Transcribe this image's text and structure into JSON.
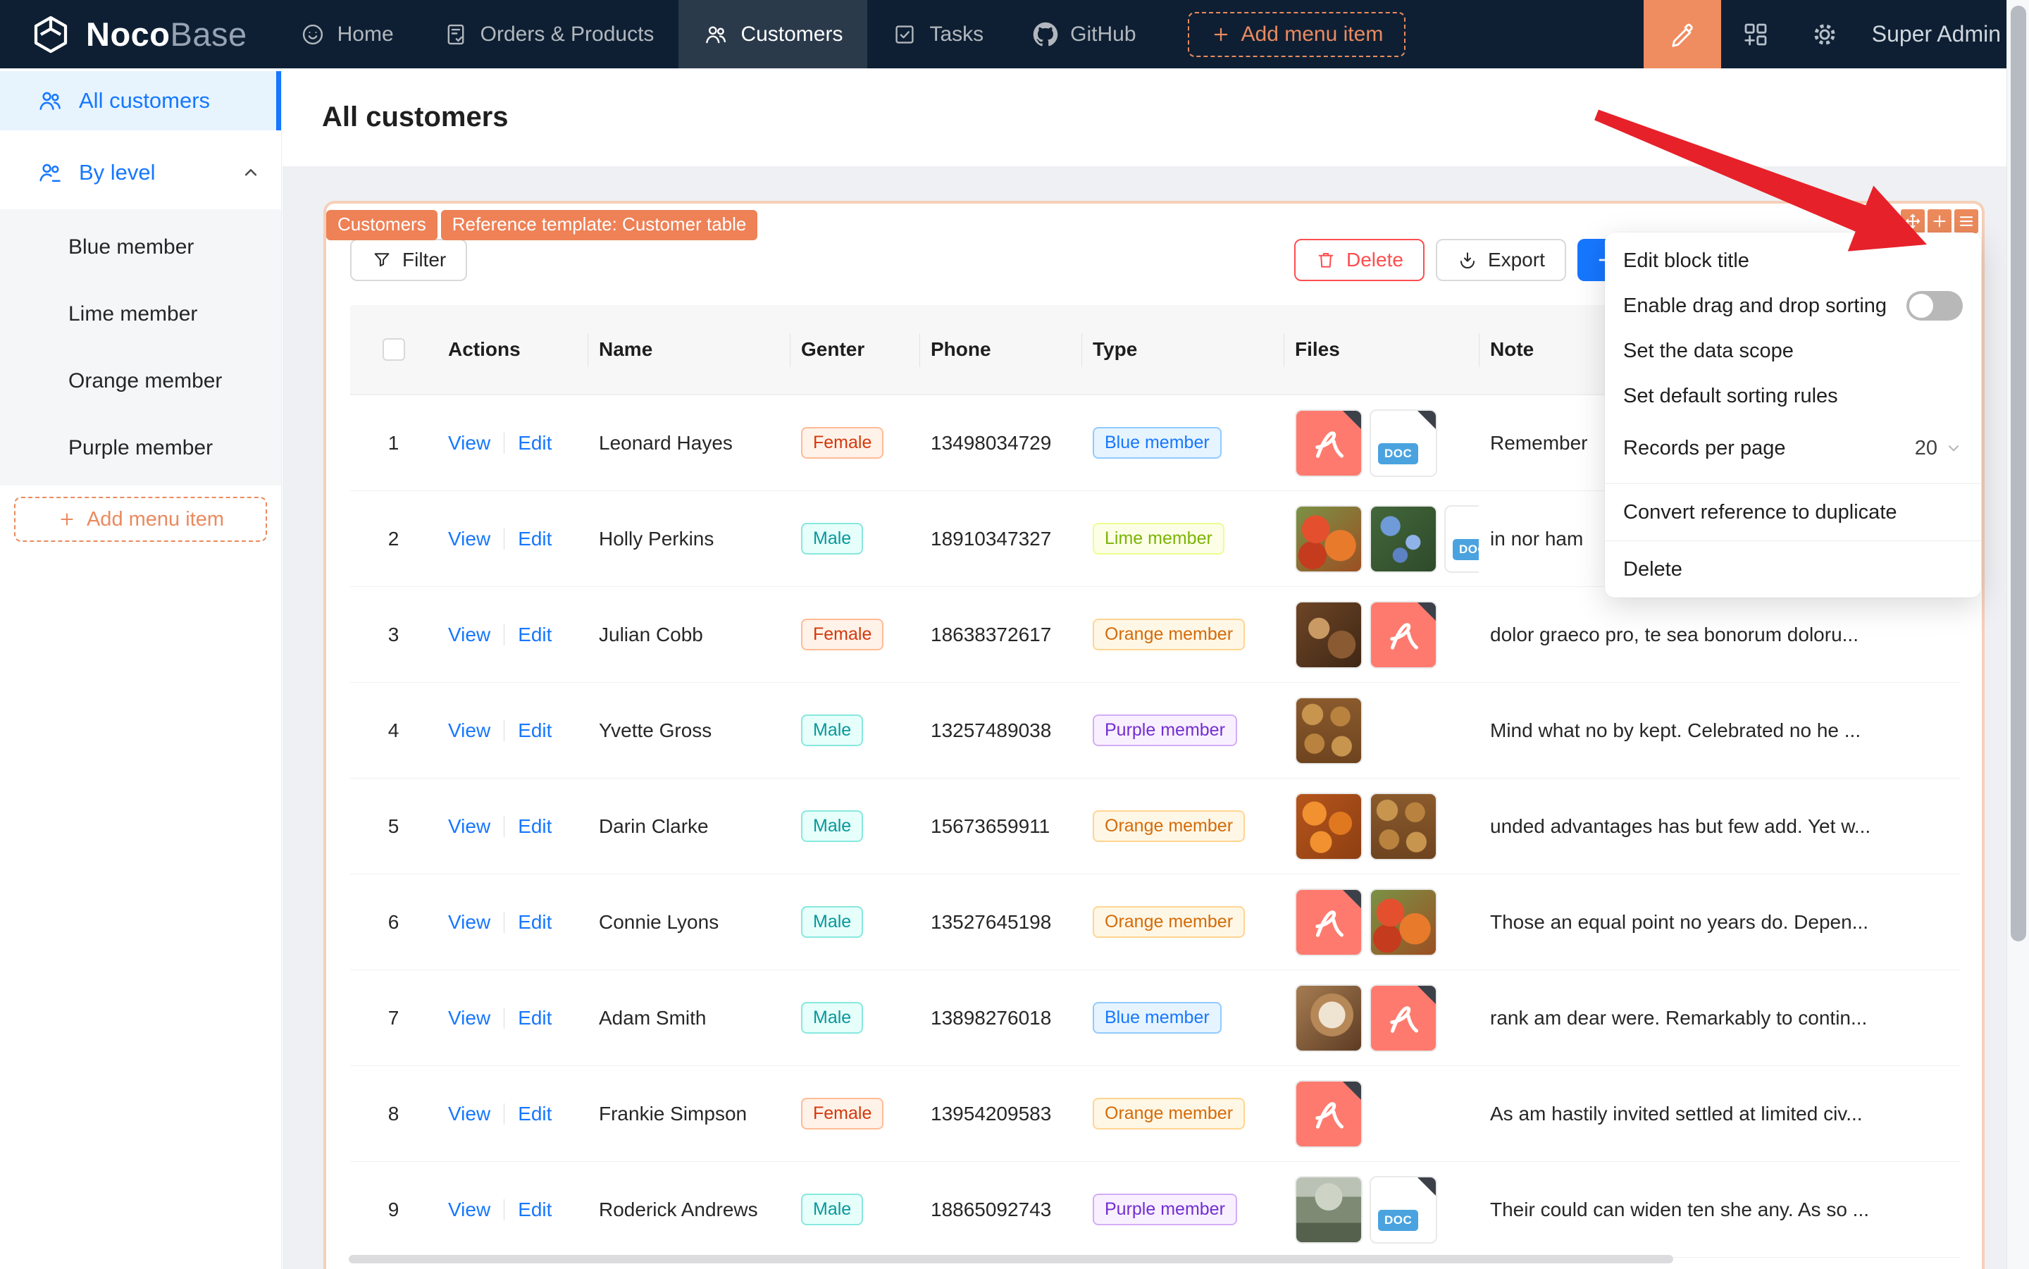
{
  "navbar": {
    "brand": {
      "name_bold": "Noco",
      "name_light": "Base"
    },
    "items": [
      {
        "label": "Home",
        "icon": "home-smiley-icon",
        "active": false
      },
      {
        "label": "Orders & Products",
        "icon": "orders-icon",
        "active": false
      },
      {
        "label": "Customers",
        "icon": "customers-icon",
        "active": true
      },
      {
        "label": "Tasks",
        "icon": "tasks-icon",
        "active": false
      },
      {
        "label": "GitHub",
        "icon": "github-icon",
        "active": false
      }
    ],
    "add_menu_item": "Add menu item",
    "user": "Super Admin"
  },
  "sidebar": {
    "all_customers": "All customers",
    "by_level": "By level",
    "levels": [
      "Blue member",
      "Lime member",
      "Orange member",
      "Purple member"
    ],
    "add_menu_item": "Add menu item"
  },
  "page": {
    "title": "All customers"
  },
  "block": {
    "badges": [
      "Customers",
      "Reference template: Customer table"
    ],
    "filter_label": "Filter",
    "delete_label": "Delete",
    "export_label": "Export"
  },
  "settings_menu": {
    "items": [
      {
        "type": "item",
        "label": "Edit block title"
      },
      {
        "type": "switch",
        "label": "Enable drag and drop sorting",
        "on": false
      },
      {
        "type": "item",
        "label": "Set the data scope"
      },
      {
        "type": "item",
        "label": "Set default sorting rules"
      },
      {
        "type": "select",
        "label": "Records per page",
        "value": "20"
      },
      {
        "type": "divider"
      },
      {
        "type": "item",
        "label": "Convert reference to duplicate"
      },
      {
        "type": "divider"
      },
      {
        "type": "item",
        "label": "Delete"
      }
    ]
  },
  "table": {
    "headers": [
      "Actions",
      "Name",
      "Genter",
      "Phone",
      "Type",
      "Files",
      "Note"
    ],
    "view": "View",
    "edit": "Edit",
    "rows": [
      {
        "index": "1",
        "name": "Leonard Hayes",
        "gender": "Female",
        "gender_color": "volcano",
        "phone": "13498034729",
        "type": "Blue member",
        "type_color": "blue",
        "files": [
          "pdf",
          "doc"
        ],
        "note": "Remember"
      },
      {
        "index": "2",
        "name": "Holly Perkins",
        "gender": "Male",
        "gender_color": "cyan",
        "phone": "18910347327",
        "type": "Lime member",
        "type_color": "lime",
        "files": [
          "img-tomato",
          "img-flowers",
          "doc"
        ],
        "note": "in nor ham"
      },
      {
        "index": "3",
        "name": "Julian Cobb",
        "gender": "Female",
        "gender_color": "volcano",
        "phone": "18638372617",
        "type": "Orange member",
        "type_color": "orange",
        "files": [
          "img-food",
          "pdf"
        ],
        "note": "dolor graeco pro, te sea bonorum doloru..."
      },
      {
        "index": "4",
        "name": "Yvette Gross",
        "gender": "Male",
        "gender_color": "cyan",
        "phone": "13257489038",
        "type": "Purple member",
        "type_color": "purple",
        "files": [
          "img-cookies"
        ],
        "note": "Mind what no by kept. Celebrated no he ..."
      },
      {
        "index": "5",
        "name": "Darin Clarke",
        "gender": "Male",
        "gender_color": "cyan",
        "phone": "15673659911",
        "type": "Orange member",
        "type_color": "orange",
        "files": [
          "img-oranges",
          "img-cookies"
        ],
        "note": "unded advantages has but few add. Yet w..."
      },
      {
        "index": "6",
        "name": "Connie Lyons",
        "gender": "Male",
        "gender_color": "cyan",
        "phone": "13527645198",
        "type": "Orange member",
        "type_color": "orange",
        "files": [
          "pdf",
          "img-tomato"
        ],
        "note": "Those an equal point no years do. Depen..."
      },
      {
        "index": "7",
        "name": "Adam Smith",
        "gender": "Male",
        "gender_color": "cyan",
        "phone": "13898276018",
        "type": "Blue member",
        "type_color": "blue",
        "files": [
          "img-coffee",
          "pdf"
        ],
        "note": "rank am dear were. Remarkably to contin..."
      },
      {
        "index": "8",
        "name": "Frankie Simpson",
        "gender": "Female",
        "gender_color": "volcano",
        "phone": "13954209583",
        "type": "Orange member",
        "type_color": "orange",
        "files": [
          "pdf"
        ],
        "note": "As am hastily invited settled at limited civ..."
      },
      {
        "index": "9",
        "name": "Roderick Andrews",
        "gender": "Male",
        "gender_color": "cyan",
        "phone": "18865092743",
        "type": "Purple member",
        "type_color": "purple",
        "files": [
          "img-interior",
          "doc"
        ],
        "note": "Their could can widen ten she any. As so ..."
      }
    ]
  },
  "files_meta": {
    "doc_label": "DOC"
  },
  "annotation": {
    "arrow_color": "#e6212a"
  },
  "colors": {
    "accent_orange": "#ee8156",
    "primary_blue": "#1677ff",
    "navbar_bg": "#0e1f33"
  }
}
